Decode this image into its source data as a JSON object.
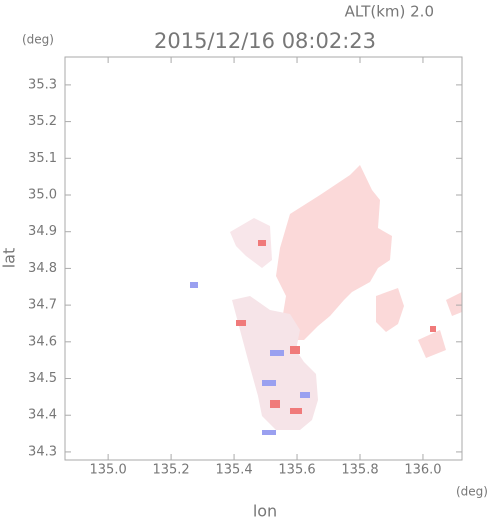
{
  "chart_data": {
    "type": "map",
    "title": "2015/12/16 08:02:23",
    "subtitle": "ALT(km) 2.0",
    "x_label": "lon",
    "y_label": "lat",
    "x_unit": "(deg)",
    "y_unit": "(deg)",
    "xlim": [
      134.863,
      136.124
    ],
    "ylim": [
      34.278,
      35.376
    ],
    "xticks": [
      {
        "value": 135.0,
        "label": "135.0"
      },
      135.2,
      135.4,
      135.6,
      135.8,
      {
        "value": 136.0,
        "label": "136.0"
      }
    ],
    "yticks": [
      34.3,
      34.4,
      34.5,
      34.6,
      34.7,
      34.8,
      34.9,
      {
        "value": 35.0,
        "label": "35.0"
      },
      35.1,
      35.2,
      35.3
    ]
  }
}
